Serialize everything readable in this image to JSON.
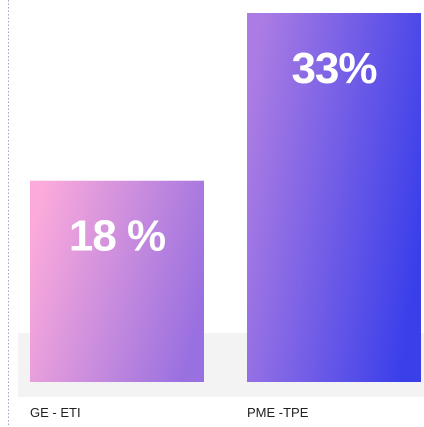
{
  "chart_data": {
    "type": "bar",
    "categories": [
      "GE - ETI",
      "PME -TPE"
    ],
    "values": [
      18,
      33
    ],
    "value_labels": [
      "18 %",
      "33%"
    ],
    "colors": [
      [
        "#fbaadb",
        "#9970e0"
      ],
      [
        "#ab7ce3",
        "#3a3fea"
      ]
    ]
  }
}
